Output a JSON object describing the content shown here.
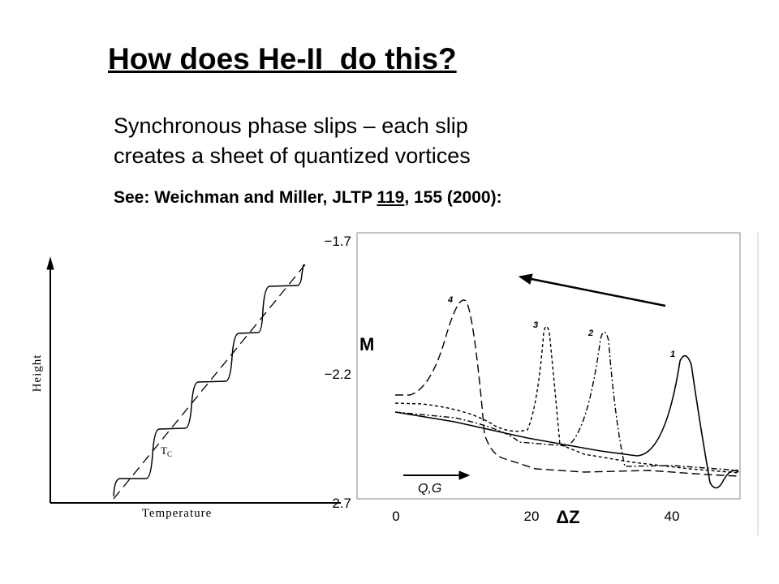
{
  "header": {
    "title": "How does He-II  do this?"
  },
  "body": {
    "lines": [
      "Synchronous phase slips – each slip",
      "creates a sheet of quantized vortices"
    ],
    "reference": [
      "See: Weichman and Miller, JLTP ",
      "119",
      ", 155 (2000):"
    ]
  },
  "left_figure": {
    "y_label": "Height",
    "x_label": "Temperature",
    "marker": "T",
    "marker_sub": "C"
  },
  "right_figure": {
    "y_label": "M",
    "x_label": "ΔZ",
    "yticks": [
      "−1.7",
      "−2.2",
      "−2.7"
    ],
    "xticks": [
      "0",
      "20",
      "40"
    ],
    "curve_labels": [
      "4",
      "3",
      "2",
      "1"
    ],
    "arrow_label": "Q,G"
  }
}
